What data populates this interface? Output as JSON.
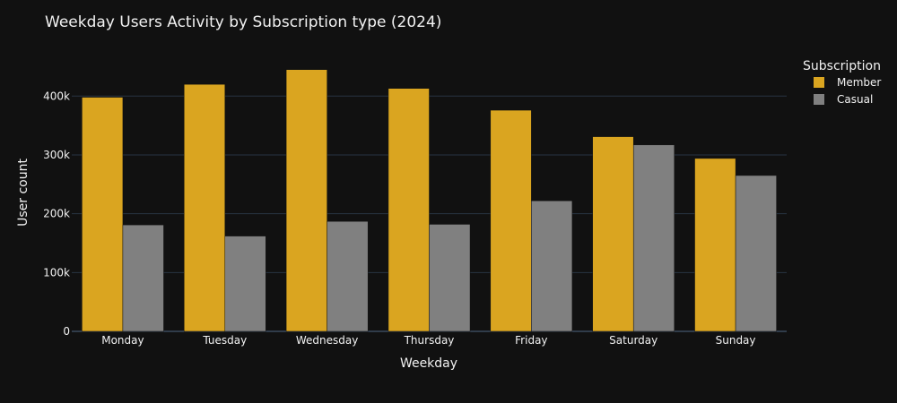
{
  "chart_data": {
    "type": "bar",
    "title": "Weekday Users Activity by Subscription type (2024)",
    "xlabel": "Weekday",
    "ylabel": "User count",
    "categories": [
      "Monday",
      "Tuesday",
      "Wednesday",
      "Thursday",
      "Friday",
      "Saturday",
      "Sunday"
    ],
    "series": [
      {
        "name": "Member",
        "color": "#DAA520",
        "values": [
          398000,
          420000,
          445000,
          413000,
          376000,
          331000,
          294000
        ]
      },
      {
        "name": "Casual",
        "color": "#808080",
        "values": [
          181000,
          162000,
          187000,
          182000,
          222000,
          317000,
          265000
        ]
      }
    ],
    "ylim": [
      0,
      472000
    ],
    "yticks": [
      0,
      100000,
      200000,
      300000,
      400000
    ],
    "ytick_labels": [
      "0",
      "100k",
      "200k",
      "300k",
      "400k"
    ],
    "legend": {
      "title": "Subscription",
      "placement": "top-right"
    },
    "grid": true,
    "background": "#111111"
  }
}
